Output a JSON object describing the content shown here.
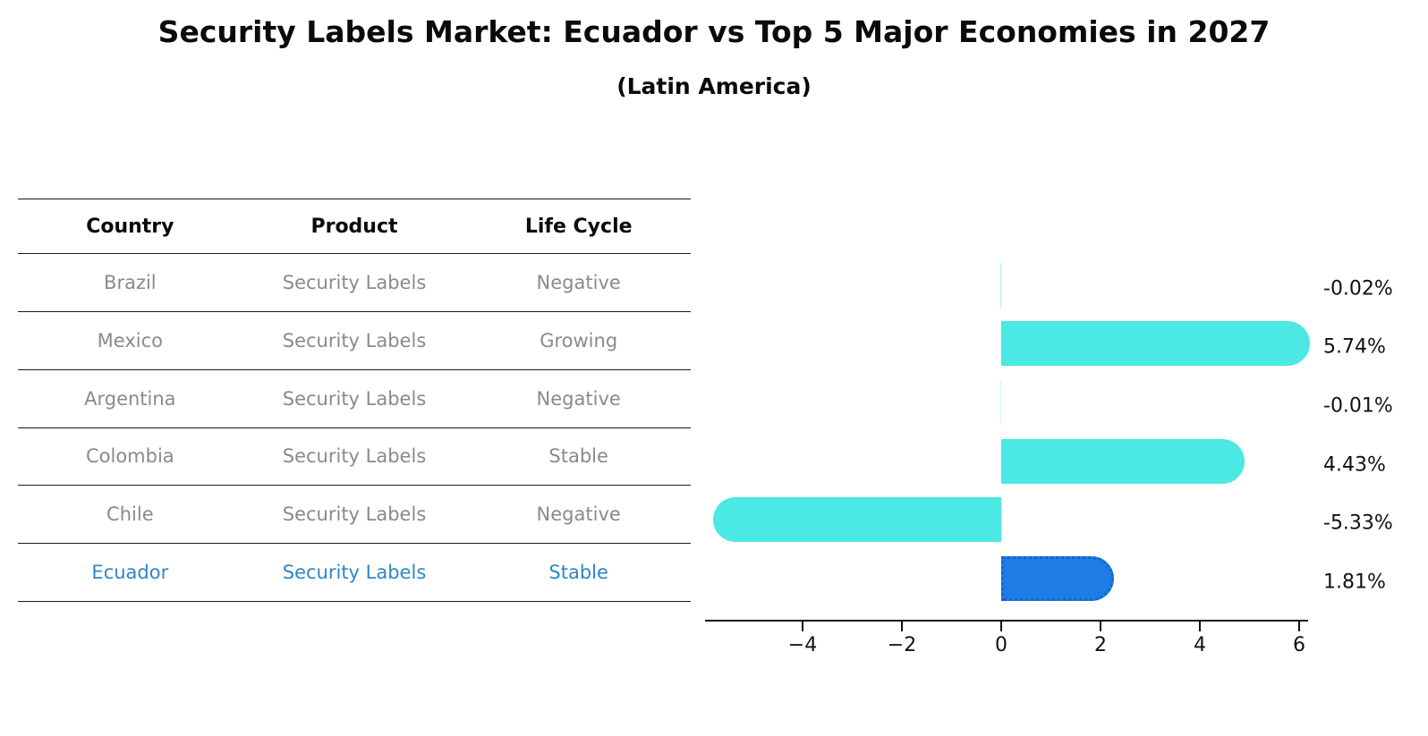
{
  "page": {
    "title": "Security Labels Market: Ecuador vs Top 5 Major Economies in 2027",
    "subtitle": "(Latin America)"
  },
  "table": {
    "headers": [
      "Country",
      "Product",
      "Life Cycle"
    ],
    "rows": [
      {
        "country": "Brazil",
        "product": "Security Labels",
        "life_cycle": "Negative",
        "highlight": false
      },
      {
        "country": "Mexico",
        "product": "Security Labels",
        "life_cycle": "Growing",
        "highlight": false
      },
      {
        "country": "Argentina",
        "product": "Security Labels",
        "life_cycle": "Negative",
        "highlight": false
      },
      {
        "country": "Colombia",
        "product": "Security Labels",
        "life_cycle": "Stable",
        "highlight": false
      },
      {
        "country": "Chile",
        "product": "Security Labels",
        "life_cycle": "Negative",
        "highlight": false
      },
      {
        "country": "Ecuador",
        "product": "Security Labels",
        "life_cycle": "Stable",
        "highlight": true
      }
    ]
  },
  "chart_data": {
    "type": "bar",
    "orientation": "horizontal",
    "title": "Security Labels Market: Ecuador vs Top 5 Major Economies in 2027",
    "subtitle": "(Latin America)",
    "categories": [
      "Brazil",
      "Mexico",
      "Argentina",
      "Colombia",
      "Chile",
      "Ecuador"
    ],
    "values": [
      -0.02,
      5.74,
      -0.01,
      4.43,
      -5.33,
      1.81
    ],
    "value_labels": [
      "-0.02%",
      "5.74%",
      "-0.01%",
      "4.43%",
      "-5.33%",
      "1.81%"
    ],
    "unit": "percent",
    "x_ticks": [
      -4,
      -2,
      0,
      2,
      4,
      6
    ],
    "x_tick_labels": [
      "−4",
      "−2",
      "0",
      "2",
      "4",
      "6"
    ],
    "xlim": [
      -5.95,
      6.2
    ],
    "grid": false,
    "legend": false,
    "bar_color": "#4be8e4",
    "highlight_bar_color": "#1e7ce6",
    "highlight_border_color": "#1565cc",
    "highlight_index": 5,
    "highlight_text_color": "#2e86c9",
    "table_text_color": "#8a8a8a",
    "axis_text_color": "#111111"
  }
}
